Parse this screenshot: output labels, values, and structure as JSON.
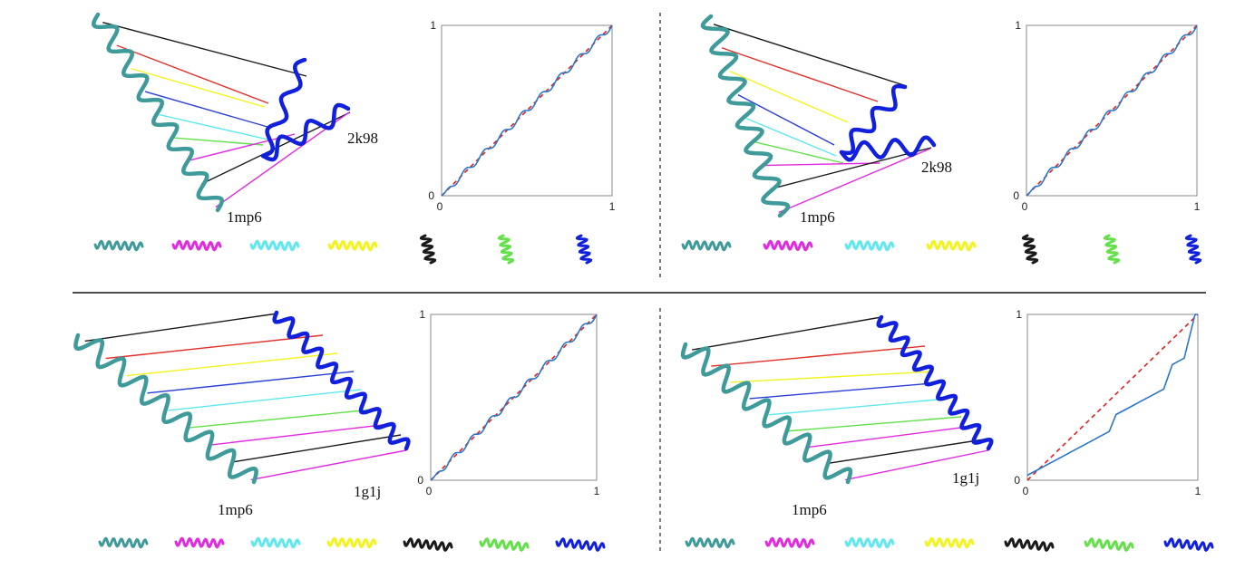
{
  "colors": {
    "teal": "#3f9a9a",
    "blue": "#1020dd",
    "red": "#e0302a",
    "yellow": "#f3f320",
    "navy": "#2a3fd6",
    "cyan": "#5fe8ee",
    "green": "#63e04a",
    "magenta": "#e02be0",
    "black": "#1a1a1a",
    "curve": "#2a77c9",
    "diagonal": "#e02020"
  },
  "panels": [
    {
      "id": "top-left",
      "protein_a": "1mp6",
      "protein_b": "2k98",
      "plot": {
        "tick_min_x": "0",
        "tick_max_x": "1",
        "tick_min_y": "0",
        "tick_max_y": "1"
      },
      "legend_icons": [
        "teal-helix-icon",
        "magenta-helix-icon",
        "cyan-helix-icon",
        "yellow-helix-icon",
        "black-coil-icon",
        "green-coil-icon",
        "blue-coil-icon"
      ]
    },
    {
      "id": "top-right",
      "protein_a": "1mp6",
      "protein_b": "2k98",
      "plot": {
        "tick_min_x": "0",
        "tick_max_x": "1",
        "tick_min_y": "0",
        "tick_max_y": "1"
      },
      "legend_icons": [
        "teal-helix-icon",
        "magenta-helix-icon",
        "cyan-helix-icon",
        "yellow-helix-icon",
        "black-coil-icon",
        "green-coil-icon",
        "blue-coil-icon"
      ]
    },
    {
      "id": "bottom-left",
      "protein_a": "1mp6",
      "protein_b": "1g1j",
      "plot": {
        "tick_min_x": "0",
        "tick_max_x": "1",
        "tick_min_y": "0",
        "tick_max_y": "1"
      },
      "legend_icons": [
        "teal-helix-icon",
        "magenta-helix-icon",
        "cyan-helix-icon",
        "yellow-helix-icon",
        "black-helix-icon",
        "green-helix-icon",
        "blue-helix-icon"
      ]
    },
    {
      "id": "bottom-right",
      "protein_a": "1mp6",
      "protein_b": "1g1j",
      "plot": {
        "tick_min_x": "0",
        "tick_max_x": "1",
        "tick_min_y": "0",
        "tick_max_y": "1"
      },
      "legend_icons": [
        "teal-helix-icon",
        "magenta-helix-icon",
        "cyan-helix-icon",
        "yellow-helix-icon",
        "black-helix-icon",
        "green-helix-icon",
        "blue-helix-icon"
      ]
    }
  ]
}
